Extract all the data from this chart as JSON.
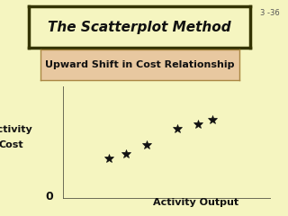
{
  "title": "The Scatterplot Method",
  "subtitle": "Upward Shift in Cost Relationship",
  "page_ref": "3 -36",
  "background_color": "#f5f5c0",
  "scatter_x": [
    0.22,
    0.3,
    0.4,
    0.55,
    0.65,
    0.72
  ],
  "scatter_y": [
    0.36,
    0.4,
    0.48,
    0.62,
    0.66,
    0.7
  ],
  "xlabel": "Activity Output",
  "ylabel_line1": "Activity",
  "ylabel_line2": "Cost",
  "origin_label": "0",
  "marker_color": "#111111",
  "axis_color": "#555544",
  "title_bg": "#f5f5c0",
  "title_border": "#333300",
  "subtitle_bg": "#e8c8a0",
  "subtitle_border": "#aa8844",
  "title_fontsize": 11,
  "subtitle_fontsize": 8,
  "label_fontsize": 8,
  "marker_size": 7
}
